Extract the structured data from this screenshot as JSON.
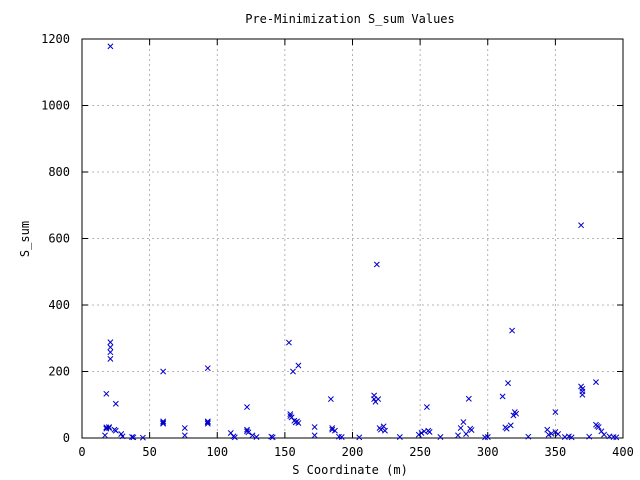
{
  "chart_data": {
    "type": "scatter",
    "title": "Pre-Minimization S_sum Values",
    "xlabel": "S Coordinate (m)",
    "ylabel": "S_sum",
    "xlim": [
      0,
      400
    ],
    "ylim": [
      0,
      1200
    ],
    "xticks": [
      0,
      50,
      100,
      150,
      200,
      250,
      300,
      350,
      400
    ],
    "yticks": [
      0,
      200,
      400,
      600,
      800,
      1000,
      1200
    ],
    "grid": true,
    "marker": "x",
    "color": "#0000cc",
    "series": [
      {
        "points": [
          [
            21,
            1178
          ],
          [
            218,
            522
          ],
          [
            369,
            640
          ],
          [
            21,
            288
          ],
          [
            21,
            273
          ],
          [
            21,
            258
          ],
          [
            21,
            238
          ],
          [
            18,
            133
          ],
          [
            25,
            103
          ],
          [
            18,
            32
          ],
          [
            20,
            30
          ],
          [
            18,
            28
          ],
          [
            20,
            33
          ],
          [
            24,
            25
          ],
          [
            25,
            22
          ],
          [
            17,
            8
          ],
          [
            29,
            12
          ],
          [
            30,
            5
          ],
          [
            37,
            3
          ],
          [
            38,
            2
          ],
          [
            45,
            1
          ],
          [
            60,
            200
          ],
          [
            60,
            50
          ],
          [
            60,
            46
          ],
          [
            60,
            43
          ],
          [
            76,
            30
          ],
          [
            76,
            8
          ],
          [
            93,
            210
          ],
          [
            93,
            50
          ],
          [
            93,
            47
          ],
          [
            93,
            43
          ],
          [
            110,
            15
          ],
          [
            112,
            5
          ],
          [
            113,
            2
          ],
          [
            122,
            93
          ],
          [
            122,
            25
          ],
          [
            122,
            20
          ],
          [
            123,
            17
          ],
          [
            126,
            8
          ],
          [
            129,
            3
          ],
          [
            140,
            4
          ],
          [
            141,
            2
          ],
          [
            153,
            287
          ],
          [
            154,
            72
          ],
          [
            154,
            66
          ],
          [
            155,
            62
          ],
          [
            156,
            200
          ],
          [
            160,
            218
          ],
          [
            157,
            52
          ],
          [
            158,
            47
          ],
          [
            159,
            50
          ],
          [
            160,
            45
          ],
          [
            172,
            33
          ],
          [
            172,
            8
          ],
          [
            184,
            117
          ],
          [
            185,
            30
          ],
          [
            185,
            25
          ],
          [
            187,
            22
          ],
          [
            190,
            4
          ],
          [
            192,
            3
          ],
          [
            205,
            2
          ],
          [
            216,
            128
          ],
          [
            216,
            117
          ],
          [
            217,
            109
          ],
          [
            219,
            117
          ],
          [
            220,
            30
          ],
          [
            221,
            25
          ],
          [
            223,
            35
          ],
          [
            224,
            22
          ],
          [
            235,
            3
          ],
          [
            249,
            10
          ],
          [
            251,
            15
          ],
          [
            253,
            20
          ],
          [
            255,
            93
          ],
          [
            256,
            22
          ],
          [
            257,
            18
          ],
          [
            265,
            3
          ],
          [
            278,
            8
          ],
          [
            280,
            30
          ],
          [
            282,
            48
          ],
          [
            284,
            12
          ],
          [
            286,
            118
          ],
          [
            287,
            28
          ],
          [
            288,
            24
          ],
          [
            298,
            2
          ],
          [
            300,
            3
          ],
          [
            311,
            125
          ],
          [
            313,
            32
          ],
          [
            314,
            28
          ],
          [
            315,
            165
          ],
          [
            317,
            38
          ],
          [
            318,
            323
          ],
          [
            319,
            68
          ],
          [
            320,
            78
          ],
          [
            321,
            73
          ],
          [
            330,
            4
          ],
          [
            344,
            25
          ],
          [
            345,
            10
          ],
          [
            347,
            13
          ],
          [
            350,
            78
          ],
          [
            350,
            18
          ],
          [
            352,
            12
          ],
          [
            357,
            3
          ],
          [
            360,
            5
          ],
          [
            362,
            2
          ],
          [
            369,
            155
          ],
          [
            370,
            148
          ],
          [
            370,
            140
          ],
          [
            370,
            130
          ],
          [
            375,
            4
          ],
          [
            380,
            168
          ],
          [
            380,
            40
          ],
          [
            381,
            36
          ],
          [
            382,
            33
          ],
          [
            384,
            20
          ],
          [
            386,
            10
          ],
          [
            390,
            5
          ],
          [
            393,
            3
          ],
          [
            395,
            2
          ]
        ]
      }
    ]
  }
}
